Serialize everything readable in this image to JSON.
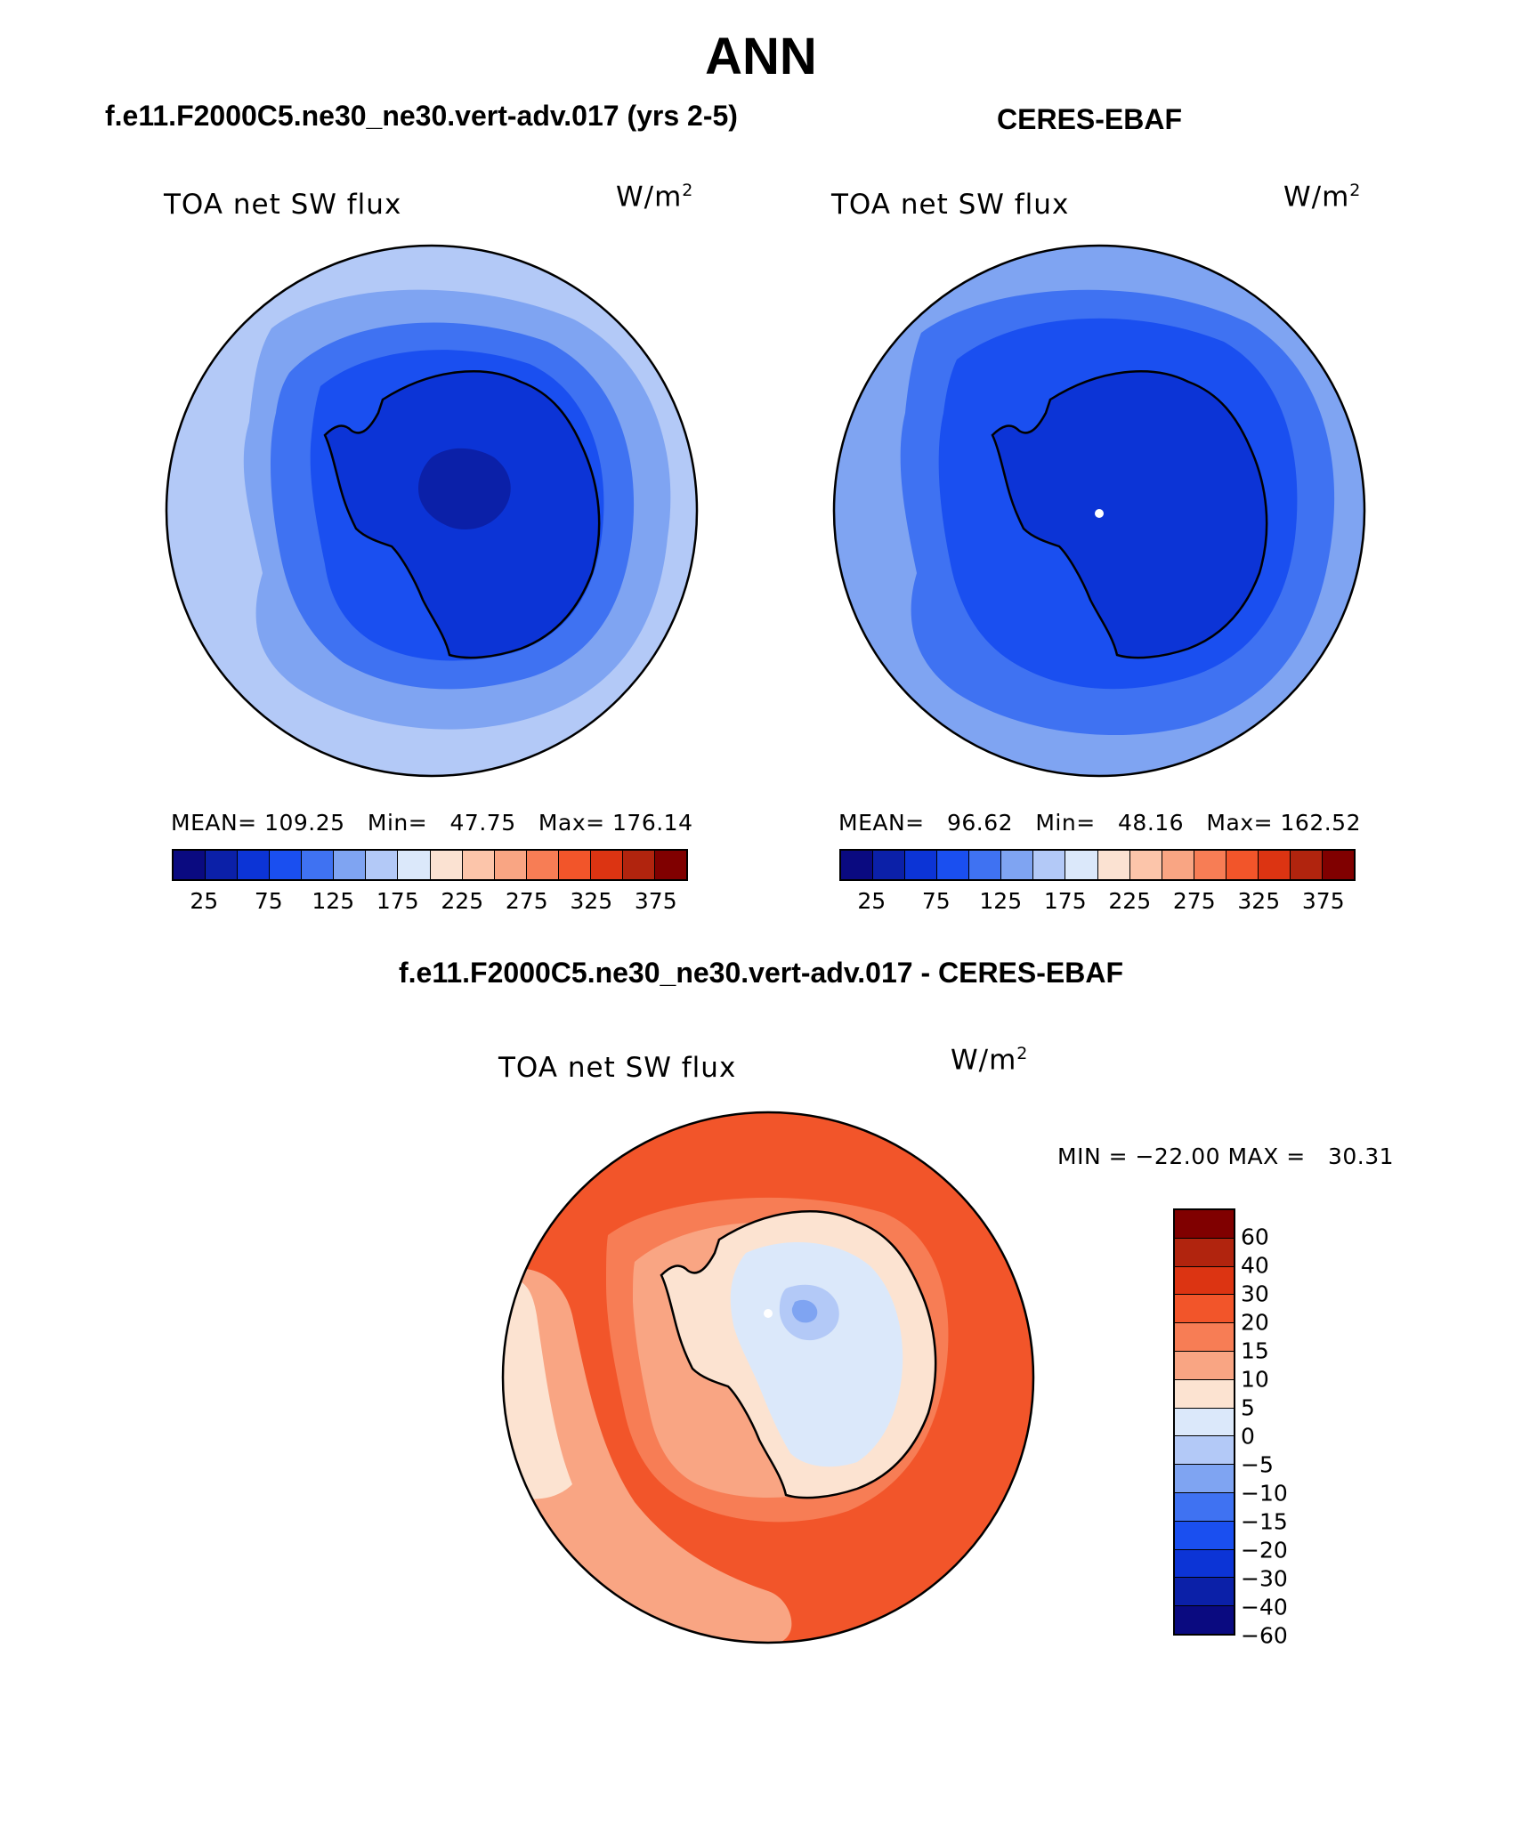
{
  "figure": {
    "title": "ANN",
    "left_case": "f.e11.F2000C5.ne30_ne30.vert-adv.017 (yrs 2-5)",
    "right_case": "CERES-EBAF",
    "diff_case": "f.e11.F2000C5.ne30_ne30.vert-adv.017 - CERES-EBAF"
  },
  "panels": {
    "left": {
      "title": "TOA net SW flux",
      "units": "W/m",
      "units_exp": "2",
      "stats": "MEAN= 109.25   Min=   47.75   Max= 176.14",
      "mean": 109.25,
      "min": 47.75,
      "max": 176.14
    },
    "right": {
      "title": "TOA net SW flux",
      "units": "W/m",
      "units_exp": "2",
      "stats": "MEAN=   96.62   Min=   48.16   Max= 162.52",
      "mean": 96.62,
      "min": 48.16,
      "max": 162.52
    },
    "diff": {
      "title": "TOA net SW flux",
      "units": "W/m",
      "units_exp": "2",
      "stats": "MIN = −22.00 MAX =   30.31",
      "min": -22.0,
      "max": 30.31
    }
  },
  "colorbar_main": {
    "colors": [
      "#0a0a80",
      "#0b20a8",
      "#0c34d6",
      "#1a4ff0",
      "#3f72f2",
      "#7fa4f2",
      "#b3c9f7",
      "#dbe8fa",
      "#fbe2d2",
      "#fcc5aa",
      "#f9a583",
      "#f77d55",
      "#f2552a",
      "#dc3412",
      "#b1240e",
      "#800000"
    ],
    "labels": [
      "25",
      "75",
      "125",
      "175",
      "225",
      "275",
      "325",
      "375"
    ]
  },
  "colorbar_diff": {
    "colors": [
      "#800000",
      "#b1240e",
      "#dc3412",
      "#f2552a",
      "#f77d55",
      "#f9a583",
      "#fce3d1",
      "#dbe8fa",
      "#b3c9f7",
      "#7fa4f2",
      "#3f72f2",
      "#1a4ff0",
      "#0c34d6",
      "#0b20a8",
      "#0a0a80"
    ],
    "labels": [
      "60",
      "40",
      "30",
      "20",
      "15",
      "10",
      "5",
      "0",
      "−5",
      "−10",
      "−15",
      "−20",
      "−30",
      "−40",
      "−60"
    ]
  },
  "map_colors": {
    "ocean_outer": "#b3c9f7",
    "ocean_mid": "#7fa4f2",
    "ocean_inner": "#3f72f2",
    "ice_edge": "#1a4ff0",
    "continent": "#0c34d6",
    "plateau": "#0b20a8",
    "diff_outer": "#f2552a",
    "diff_ring": "#f77d55",
    "diff_inner": "#f9a583",
    "diff_coast": "#fce3d1",
    "diff_cont": "#dbe8fa",
    "diff_low": "#b3c9f7",
    "diff_spot": "#7fa4f2"
  }
}
